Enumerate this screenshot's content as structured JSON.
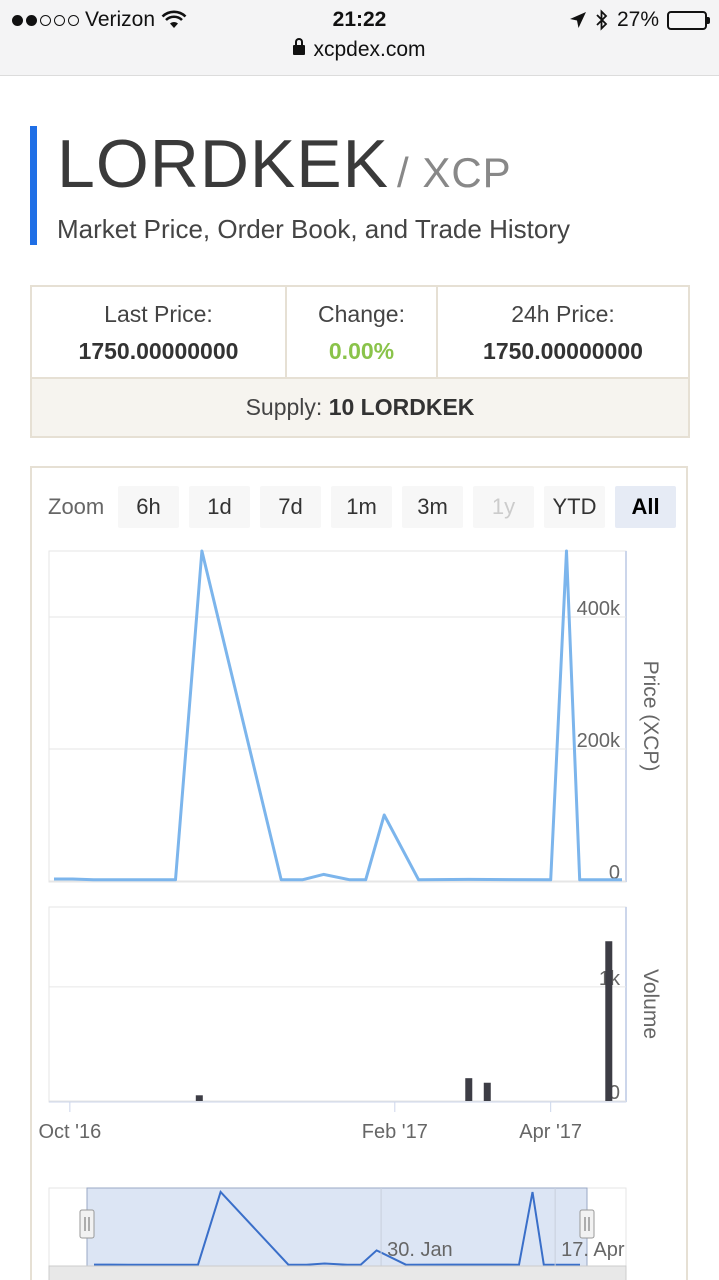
{
  "status_bar": {
    "carrier": "Verizon",
    "time": "21:22",
    "battery": "27%",
    "battery_level": 0.27,
    "url": "xcpdex.com"
  },
  "header": {
    "asset": "LORDKEK",
    "quote": "/ XCP",
    "subtitle": "Market Price, Order Book, and Trade History"
  },
  "stats": {
    "last_price_label": "Last Price:",
    "last_price": "1750.00000000",
    "change_label": "Change:",
    "change": "0.00%",
    "price_24h_label": "24h Price:",
    "price_24h": "1750.00000000",
    "supply_label": "Supply:",
    "supply": "10 LORDKEK"
  },
  "zoom": {
    "label": "Zoom",
    "buttons": [
      {
        "label": "6h",
        "state": "normal"
      },
      {
        "label": "1d",
        "state": "normal"
      },
      {
        "label": "7d",
        "state": "normal"
      },
      {
        "label": "1m",
        "state": "normal"
      },
      {
        "label": "3m",
        "state": "normal"
      },
      {
        "label": "1y",
        "state": "disabled"
      },
      {
        "label": "YTD",
        "state": "normal"
      },
      {
        "label": "All",
        "state": "active"
      }
    ]
  },
  "colors": {
    "price_line": "#7cb5ec",
    "volume_bar": "#3d3d45",
    "navigator_fill": "#d6e0f2",
    "accent": "#1f6fe6",
    "change_positive": "#8ac34a"
  },
  "chart_data": [
    {
      "type": "line",
      "name": "price",
      "ylabel": "Price (XCP)",
      "ylim": [
        0,
        500000
      ],
      "yticks": [
        {
          "value": 0,
          "label": "0"
        },
        {
          "value": 200000,
          "label": "200k"
        },
        {
          "value": 400000,
          "label": "400k"
        }
      ],
      "x": [
        "2016-09-25",
        "2016-10-02",
        "2016-10-10",
        "2016-11-10",
        "2016-11-20",
        "2016-12-20",
        "2016-12-28",
        "2017-01-05",
        "2017-01-15",
        "2017-01-21",
        "2017-01-28",
        "2017-02-10",
        "2017-03-01",
        "2017-04-01",
        "2017-04-07",
        "2017-04-12",
        "2017-04-18",
        "2017-04-28"
      ],
      "y": [
        3000,
        3000,
        1750,
        1750,
        500000,
        1750,
        1750,
        10000,
        1750,
        1750,
        100000,
        1750,
        2500,
        1750,
        500000,
        1750,
        1750,
        1750
      ]
    },
    {
      "type": "bar",
      "name": "volume",
      "ylabel": "Volume",
      "ylim": [
        0,
        1700
      ],
      "yticks": [
        {
          "value": 0,
          "label": "0"
        },
        {
          "value": 1000,
          "label": "1k"
        }
      ],
      "x": [
        "2016-11-19",
        "2017-03-01",
        "2017-03-08",
        "2017-04-23"
      ],
      "y": [
        50,
        200,
        160,
        1400
      ]
    },
    {
      "type": "area",
      "name": "navigator",
      "x_labels": [
        {
          "date": "2017-01-30",
          "label": "30. Jan"
        },
        {
          "date": "2017-04-17",
          "label": "17. Apr"
        }
      ],
      "selected_range": [
        "2016-09-25",
        "2017-04-28"
      ]
    }
  ],
  "x_axis": {
    "ticks": [
      {
        "date": "2016-10-01",
        "label": "Oct '16"
      },
      {
        "date": "2017-02-01",
        "label": "Feb '17"
      },
      {
        "date": "2017-04-01",
        "label": "Apr '17"
      }
    ]
  }
}
